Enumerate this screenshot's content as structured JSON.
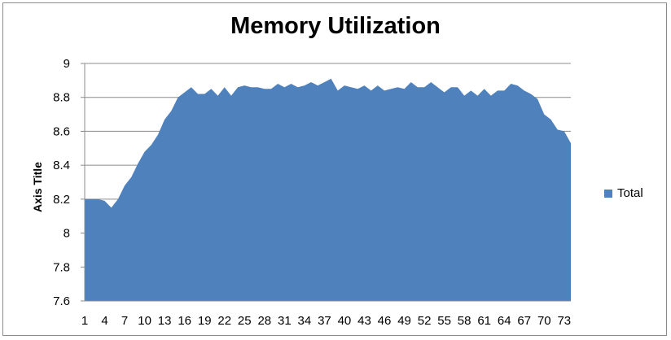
{
  "chart_data": {
    "type": "area",
    "title": "Memory Utilization",
    "xlabel": "",
    "ylabel": "Axis Title",
    "ylim": [
      7.6,
      9
    ],
    "yticks": [
      "7.6",
      "7.8",
      "8",
      "8.2",
      "8.4",
      "8.6",
      "8.8",
      "9"
    ],
    "xticks": [
      "1",
      "4",
      "7",
      "10",
      "13",
      "16",
      "19",
      "22",
      "25",
      "28",
      "31",
      "34",
      "37",
      "40",
      "43",
      "46",
      "49",
      "52",
      "55",
      "58",
      "61",
      "64",
      "67",
      "70",
      "73"
    ],
    "grid": true,
    "legend": "right",
    "color": "#4f81bd",
    "series": [
      {
        "name": "Total",
        "x": [
          1,
          2,
          3,
          4,
          5,
          6,
          7,
          8,
          9,
          10,
          11,
          12,
          13,
          14,
          15,
          16,
          17,
          18,
          19,
          20,
          21,
          22,
          23,
          24,
          25,
          26,
          27,
          28,
          29,
          30,
          31,
          32,
          33,
          34,
          35,
          36,
          37,
          38,
          39,
          40,
          41,
          42,
          43,
          44,
          45,
          46,
          47,
          48,
          49,
          50,
          51,
          52,
          53,
          54,
          55,
          56,
          57,
          58,
          59,
          60,
          61,
          62,
          63,
          64,
          65,
          66,
          67,
          68,
          69,
          70,
          71,
          72,
          73,
          74
        ],
        "values": [
          8.2,
          8.2,
          8.2,
          8.19,
          8.15,
          8.2,
          8.28,
          8.33,
          8.41,
          8.48,
          8.52,
          8.58,
          8.67,
          8.72,
          8.8,
          8.83,
          8.86,
          8.82,
          8.82,
          8.85,
          8.81,
          8.86,
          8.81,
          8.86,
          8.87,
          8.86,
          8.86,
          8.85,
          8.85,
          8.88,
          8.86,
          8.88,
          8.86,
          8.87,
          8.89,
          8.87,
          8.89,
          8.91,
          8.84,
          8.87,
          8.86,
          8.85,
          8.87,
          8.84,
          8.87,
          8.84,
          8.85,
          8.86,
          8.85,
          8.89,
          8.86,
          8.86,
          8.89,
          8.86,
          8.83,
          8.86,
          8.86,
          8.81,
          8.84,
          8.81,
          8.85,
          8.81,
          8.84,
          8.84,
          8.88,
          8.87,
          8.84,
          8.82,
          8.79,
          8.7,
          8.67,
          8.61,
          8.6,
          8.53
        ]
      }
    ]
  }
}
